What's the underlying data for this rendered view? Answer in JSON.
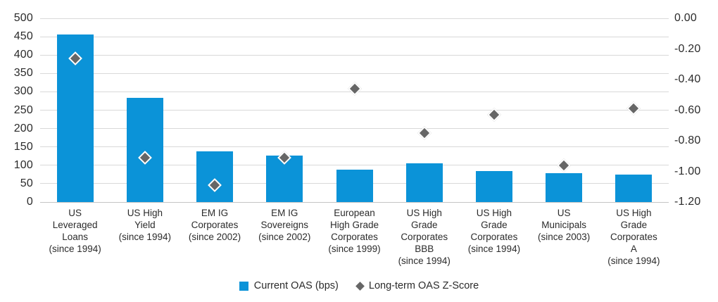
{
  "chart_data": {
    "type": "bar",
    "subtype": "combo-bar-scatter-dual-axis",
    "title": "",
    "grid": true,
    "legend_position": "bottom",
    "categories": [
      "US\nLeveraged\nLoans\n(since 1994)",
      "US High\nYield\n(since 1994)",
      "EM IG\nCorporates\n(since 2002)",
      "EM IG\nSovereigns\n(since 2002)",
      "European\nHigh Grade\nCorporates\n(since 1999)",
      "US High\nGrade\nCorporates\nBBB\n(since 1994)",
      "US High\nGrade\nCorporates\n(since 1994)",
      "US\nMunicipals\n(since 2003)",
      "US High\nGrade\nCorporates\nA\n(since 1994)"
    ],
    "series": [
      {
        "name": "Current OAS (bps)",
        "type": "bar",
        "axis": "left",
        "color": "#0b93d8",
        "values": [
          455,
          283,
          137,
          127,
          88,
          105,
          84,
          79,
          74
        ]
      },
      {
        "name": "Long-term OAS Z-Score",
        "type": "scatter-diamond",
        "axis": "right",
        "color": "#666666",
        "values": [
          -0.26,
          -0.91,
          -1.09,
          -0.91,
          -0.46,
          -0.75,
          -0.63,
          -0.96,
          -0.59
        ]
      }
    ],
    "left_axis": {
      "min": 0,
      "max": 500,
      "ticks": [
        "500",
        "450",
        "400",
        "350",
        "300",
        "250",
        "200",
        "150",
        "100",
        "50",
        "0"
      ],
      "tick_values": [
        500,
        450,
        400,
        350,
        300,
        250,
        200,
        150,
        100,
        50,
        0
      ]
    },
    "right_axis": {
      "min": -1.2,
      "max": 0,
      "ticks": [
        "0.00",
        "-0.20",
        "-0.40",
        "-0.60",
        "-0.80",
        "-1.00",
        "-1.20"
      ],
      "tick_values": [
        0,
        -0.2,
        -0.4,
        -0.6,
        -0.8,
        -1.0,
        -1.2
      ]
    },
    "colors": {
      "gridline": "#d9d9d9",
      "zero_line": "#c4c4c4",
      "axis_text": "#2b2b2b",
      "background": "#ffffff"
    }
  }
}
